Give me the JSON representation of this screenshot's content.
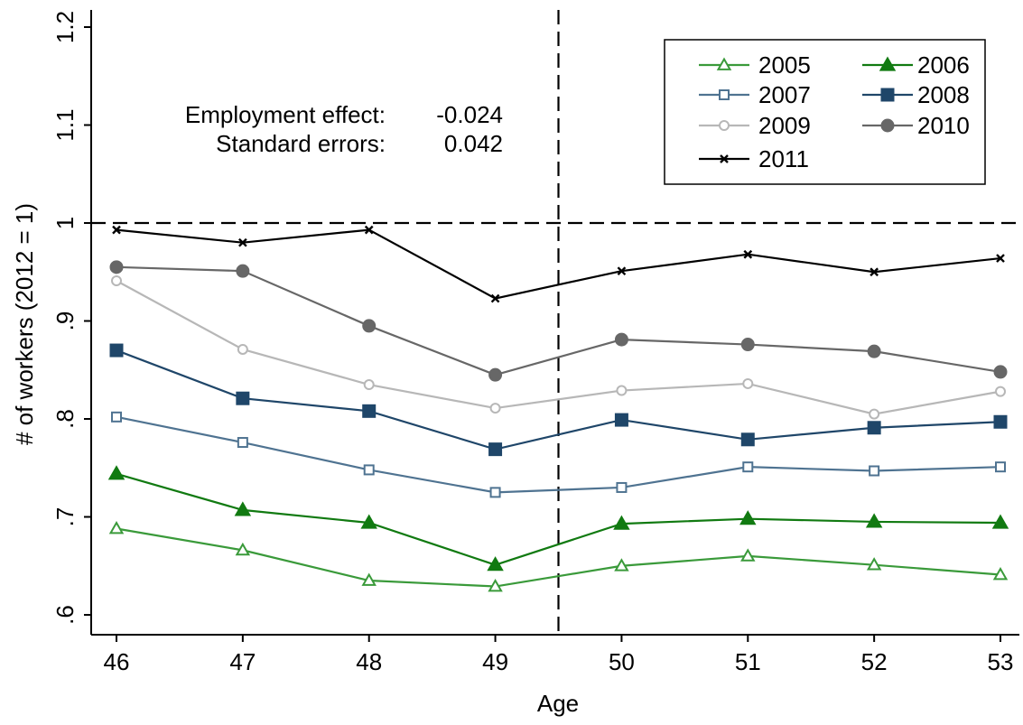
{
  "chart_data": {
    "type": "line",
    "xlabel": "Age",
    "ylabel": "# of workers (2012 = 1)",
    "x": [
      46,
      47,
      48,
      49,
      50,
      51,
      52,
      53
    ],
    "xlim": [
      46,
      53
    ],
    "ylim": [
      0.6,
      1.2
    ],
    "yticks": [
      0.6,
      0.7,
      0.8,
      0.9,
      1.0,
      1.1,
      1.2
    ],
    "ytick_labels": [
      ".6",
      ".7",
      ".8",
      ".9",
      "1",
      "1.1",
      "1.2"
    ],
    "xtick_labels": [
      "46",
      "47",
      "48",
      "49",
      "50",
      "51",
      "52",
      "53"
    ],
    "grid": false,
    "legend_position": "top-right",
    "reference_lines": {
      "horizontal_y": 1.0,
      "vertical_x": 49.5
    },
    "annotation": {
      "effect_label": "Employment effect:",
      "effect_value": "-0.024",
      "se_label": "Standard errors:",
      "se_value": "0.042"
    },
    "series": [
      {
        "name": "2005",
        "color": "#3a9a3a",
        "marker": "triangle-open",
        "values": [
          0.688,
          0.666,
          0.635,
          0.629,
          0.65,
          0.66,
          0.651,
          0.641
        ]
      },
      {
        "name": "2006",
        "color": "#117a11",
        "marker": "triangle-filled",
        "values": [
          0.744,
          0.707,
          0.694,
          0.651,
          0.693,
          0.698,
          0.695,
          0.694
        ]
      },
      {
        "name": "2007",
        "color": "#4f7391",
        "marker": "square-open",
        "values": [
          0.802,
          0.776,
          0.748,
          0.725,
          0.73,
          0.751,
          0.747,
          0.751
        ]
      },
      {
        "name": "2008",
        "color": "#1f4669",
        "marker": "square-filled",
        "values": [
          0.87,
          0.821,
          0.808,
          0.769,
          0.799,
          0.779,
          0.791,
          0.797
        ]
      },
      {
        "name": "2009",
        "color": "#b7b7b7",
        "marker": "circle-open",
        "values": [
          0.941,
          0.871,
          0.835,
          0.811,
          0.829,
          0.836,
          0.805,
          0.828
        ]
      },
      {
        "name": "2010",
        "color": "#676767",
        "marker": "circle-filled",
        "values": [
          0.955,
          0.951,
          0.895,
          0.845,
          0.881,
          0.876,
          0.869,
          0.848
        ]
      },
      {
        "name": "2011",
        "color": "#000000",
        "marker": "x",
        "values": [
          0.993,
          0.98,
          0.993,
          0.923,
          0.951,
          0.968,
          0.95,
          0.964
        ]
      }
    ]
  }
}
